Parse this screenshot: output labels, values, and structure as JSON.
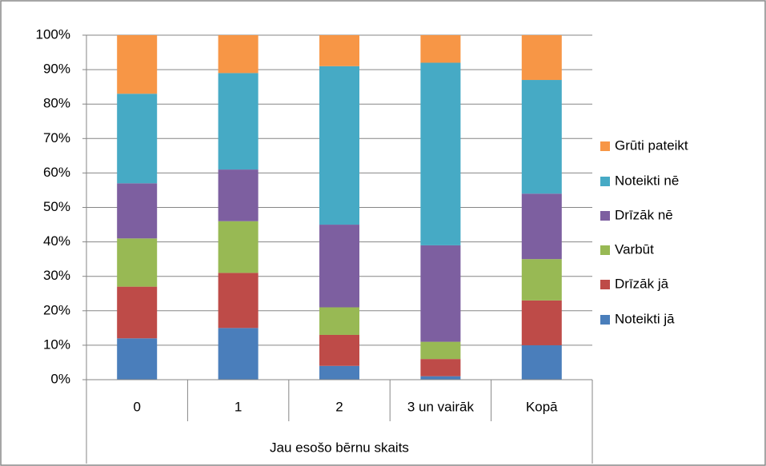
{
  "chart_data": {
    "type": "stacked_bar_100",
    "categories": [
      "0",
      "1",
      "2",
      "3 un vairāk",
      "Kopā"
    ],
    "x_group_label": "Jau esošo bērnu skaits",
    "series": [
      {
        "name": "Noteikti jā",
        "color": "#4a7ebb",
        "values": [
          12,
          15,
          4,
          1,
          10
        ]
      },
      {
        "name": "Drīzāk jā",
        "color": "#be4b48",
        "values": [
          15,
          16,
          9,
          5,
          13
        ]
      },
      {
        "name": "Varbūt",
        "color": "#98b954",
        "values": [
          14,
          15,
          8,
          5,
          12
        ]
      },
      {
        "name": "Drīzāk nē",
        "color": "#7d5fa0",
        "values": [
          16,
          15,
          24,
          28,
          19
        ]
      },
      {
        "name": "Noteikti nē",
        "color": "#46aac5",
        "values": [
          26,
          28,
          46,
          53,
          33
        ]
      },
      {
        "name": "Grūti pateikt",
        "color": "#f79646",
        "values": [
          17,
          11,
          9,
          8,
          13
        ]
      }
    ],
    "ylim": [
      0,
      100
    ],
    "yticks": [
      {
        "value": 0,
        "label": "0%"
      },
      {
        "value": 10,
        "label": "10%"
      },
      {
        "value": 20,
        "label": "20%"
      },
      {
        "value": 30,
        "label": "30%"
      },
      {
        "value": 40,
        "label": "40%"
      },
      {
        "value": 50,
        "label": "50%"
      },
      {
        "value": 60,
        "label": "60%"
      },
      {
        "value": 70,
        "label": "70%"
      },
      {
        "value": 80,
        "label": "80%"
      },
      {
        "value": 90,
        "label": "90%"
      },
      {
        "value": 100,
        "label": "100%"
      }
    ],
    "grid": true,
    "legend": "right"
  }
}
